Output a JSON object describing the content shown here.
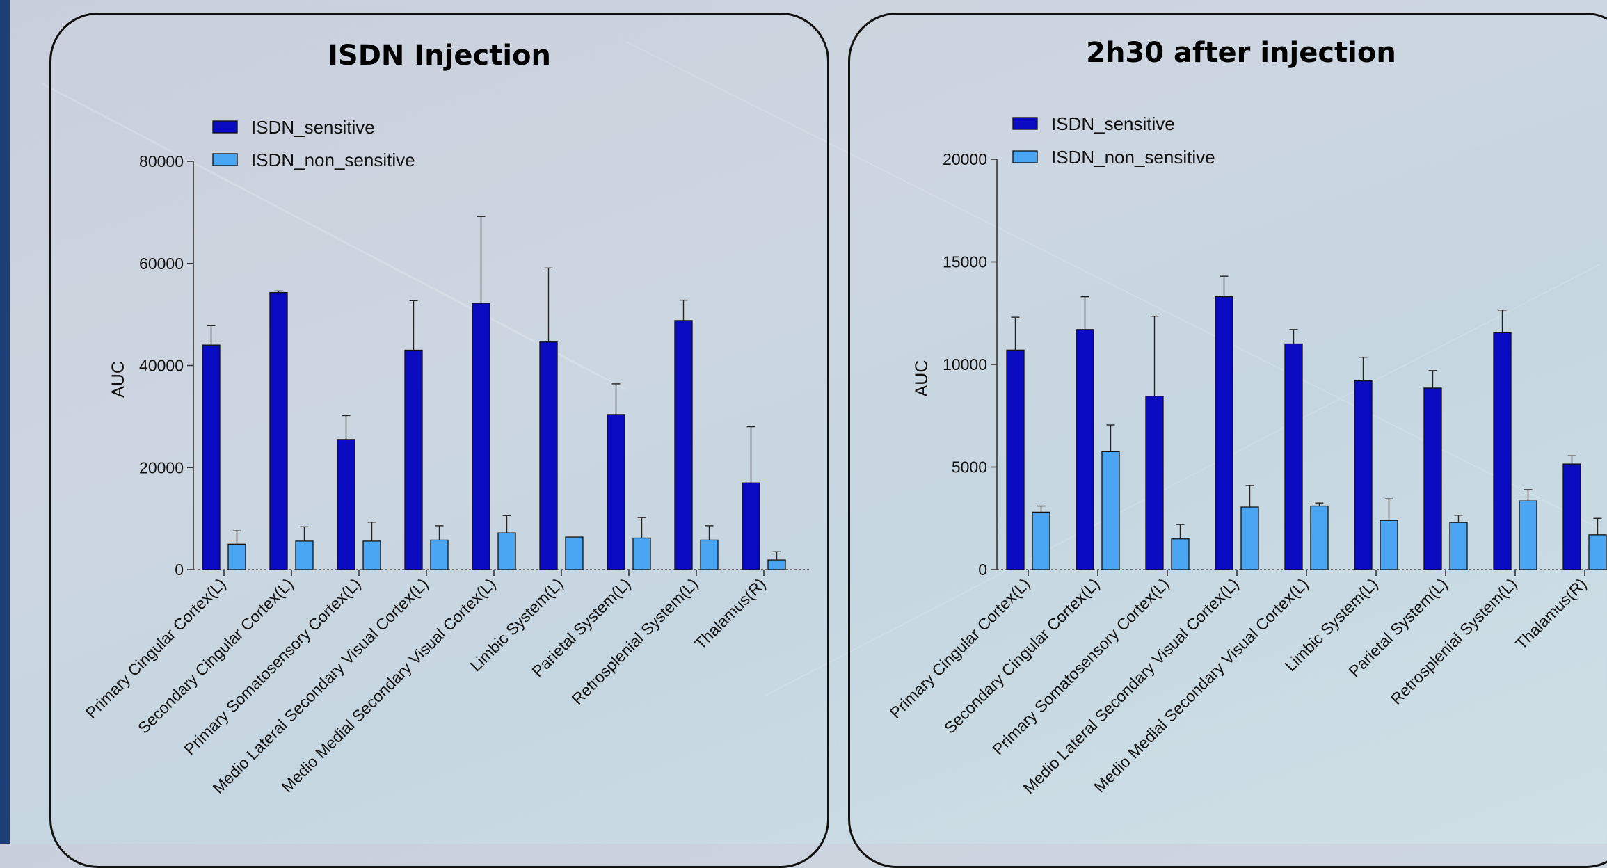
{
  "colors": {
    "sensitive": "#0a0ac0",
    "non_sensitive": "#4aa6f2",
    "frame": "#111111",
    "sidebar": "#1d3f78"
  },
  "chart_data": [
    {
      "type": "bar",
      "title": "ISDN Injection",
      "ylabel": "AUC",
      "xlabel": "",
      "ylim": [
        0,
        80000
      ],
      "yticks": [
        0,
        20000,
        40000,
        60000,
        80000
      ],
      "ytick_labels": [
        "0",
        "20000",
        "40000",
        "60000",
        "80000"
      ],
      "legend_position": "top-left",
      "categories": [
        "Primary Cingular Cortex(L)",
        "Secondary Cingular Cortex(L)",
        "Primary Somatosensory Cortex(L)",
        "Medio Lateral Secondary Visual Cortex(L)",
        "Medio Medial Secondary Visual Cortex(L)",
        "Limbic System(L)",
        "Parietal System(L)",
        "Retrosplenial System(L)",
        "Thalamus(R)"
      ],
      "series": [
        {
          "name": "ISDN_sensitive",
          "values": [
            44000,
            54300,
            25500,
            43000,
            52200,
            44600,
            30400,
            48800,
            17000
          ],
          "error": [
            3800,
            300,
            4700,
            9700,
            17000,
            14500,
            6000,
            4000,
            11000
          ]
        },
        {
          "name": "ISDN_non_sensitive",
          "values": [
            5000,
            5600,
            5600,
            5800,
            7200,
            6400,
            6200,
            5800,
            1900
          ],
          "error": [
            2600,
            2800,
            3700,
            2800,
            3400,
            0,
            4000,
            2800,
            1600
          ]
        }
      ]
    },
    {
      "type": "bar",
      "title": "2h30 after injection",
      "ylabel": "AUC",
      "xlabel": "",
      "ylim": [
        0,
        20000
      ],
      "yticks": [
        0,
        5000,
        10000,
        15000,
        20000
      ],
      "ytick_labels": [
        "0",
        "5000",
        "10000",
        "15000",
        "20000"
      ],
      "legend_position": "top-left",
      "categories": [
        "Primary Cingular Cortex(L)",
        "Secondary Cingular Cortex(L)",
        "Primary Somatosensory Cortex(L)",
        "Medio Lateral Secondary Visual Cortex(L)",
        "Medio Medial Secondary Visual Cortex(L)",
        "Limbic System(L)",
        "Parietal System(L)",
        "Retrosplenial System(L)",
        "Thalamus(R)"
      ],
      "series": [
        {
          "name": "ISDN_sensitive",
          "values": [
            10700,
            11700,
            8450,
            13300,
            11000,
            9200,
            8850,
            11550,
            5150
          ],
          "error": [
            1600,
            1600,
            3900,
            1000,
            700,
            1150,
            850,
            1100,
            400
          ]
        },
        {
          "name": "ISDN_non_sensitive",
          "values": [
            2800,
            5750,
            1500,
            3050,
            3100,
            2400,
            2300,
            3350,
            1700
          ],
          "error": [
            300,
            1300,
            700,
            1050,
            150,
            1050,
            350,
            550,
            800
          ]
        }
      ]
    }
  ]
}
